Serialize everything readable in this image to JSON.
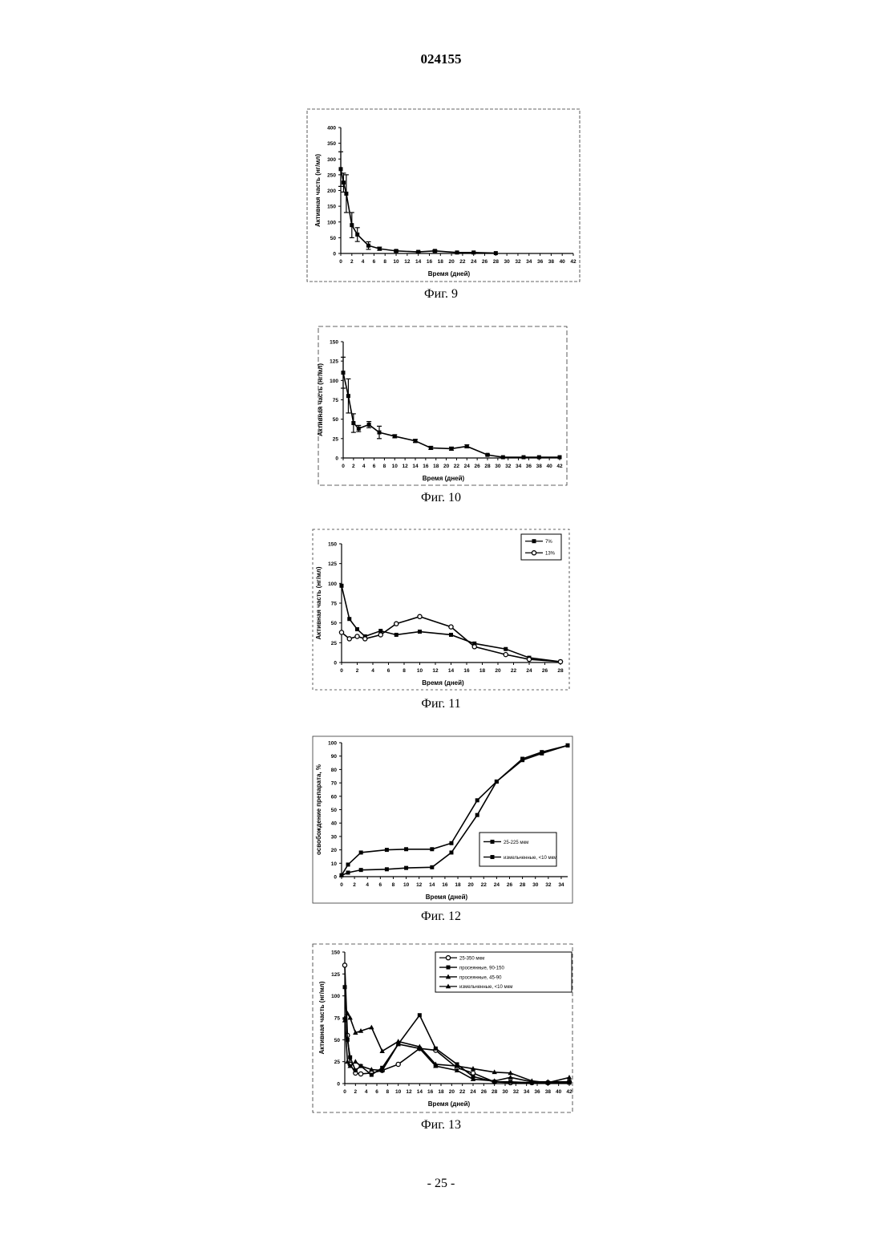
{
  "document_number": "024155",
  "page_number": "- 25 -",
  "chart_data": [
    {
      "type": "line",
      "figure_label": "Фиг. 9",
      "xlabel": "Время (дней)",
      "ylabel": "Активная часть (нг/мл)",
      "xlim": [
        0,
        42
      ],
      "ylim": [
        0,
        400
      ],
      "xticks": [
        0,
        2,
        4,
        6,
        8,
        10,
        12,
        14,
        16,
        18,
        20,
        22,
        24,
        26,
        28,
        30,
        32,
        34,
        36,
        38,
        40,
        42
      ],
      "yticks": [
        0,
        50,
        100,
        150,
        200,
        250,
        300,
        350,
        400
      ],
      "grid": false,
      "series": [
        {
          "marker": "square",
          "x": [
            0,
            0.5,
            1,
            2,
            3,
            5,
            7,
            10,
            14,
            17,
            21,
            24,
            28
          ],
          "y": [
            268,
            225,
            190,
            90,
            60,
            25,
            15,
            8,
            5,
            8,
            3,
            3,
            1
          ],
          "error": [
            55,
            30,
            60,
            40,
            22,
            12,
            5,
            3,
            2,
            3,
            1,
            1,
            0
          ]
        }
      ]
    },
    {
      "type": "line",
      "figure_label": "Фиг. 10",
      "xlabel": "Время (дней)",
      "ylabel": "Активная часть (нг/мл)",
      "xlim": [
        0,
        42
      ],
      "ylim": [
        0,
        150
      ],
      "xticks": [
        0,
        2,
        4,
        6,
        8,
        10,
        12,
        14,
        16,
        18,
        20,
        22,
        24,
        26,
        28,
        30,
        32,
        34,
        36,
        38,
        40,
        42
      ],
      "yticks": [
        0,
        25,
        50,
        75,
        100,
        125,
        150
      ],
      "grid": false,
      "series": [
        {
          "marker": "square",
          "x": [
            0,
            1,
            2,
            3,
            5,
            7,
            10,
            14,
            17,
            21,
            24,
            28,
            31,
            35,
            38,
            42
          ],
          "y": [
            110,
            80,
            45,
            38,
            43,
            33,
            28,
            22,
            13,
            12,
            15,
            4,
            1,
            1,
            1,
            1
          ],
          "error": [
            20,
            22,
            12,
            4,
            4,
            8,
            2,
            2,
            2,
            2,
            2,
            1,
            0,
            0,
            0,
            0
          ]
        }
      ]
    },
    {
      "type": "line",
      "figure_label": "Фиг. 11",
      "xlabel": "Время (дней)",
      "ylabel": "Активная часть (нг/мл)",
      "xlim": [
        0,
        28
      ],
      "ylim": [
        0,
        150
      ],
      "xticks": [
        0,
        2,
        4,
        6,
        8,
        10,
        12,
        14,
        16,
        18,
        20,
        22,
        24,
        26,
        28
      ],
      "yticks": [
        0,
        25,
        50,
        75,
        100,
        125,
        150
      ],
      "legend_position": "top-right",
      "series": [
        {
          "name": "7%",
          "marker": "square",
          "x": [
            0,
            1,
            2,
            3,
            5,
            7,
            10,
            14,
            17,
            21,
            24,
            28
          ],
          "y": [
            97,
            55,
            42,
            33,
            40,
            35,
            39,
            35,
            24,
            17,
            6,
            1
          ]
        },
        {
          "name": "13%",
          "marker": "circle",
          "x": [
            0,
            1,
            2,
            3,
            5,
            7,
            10,
            14,
            17,
            21,
            24,
            28
          ],
          "y": [
            38,
            30,
            33,
            30,
            35,
            49,
            58,
            45,
            20,
            10,
            4,
            1
          ]
        }
      ]
    },
    {
      "type": "line",
      "figure_label": "Фиг. 12",
      "xlabel": "Время (дней)",
      "ylabel": "освобождение препарата, %",
      "xlim": [
        0,
        35
      ],
      "ylim": [
        0,
        100
      ],
      "xticks": [
        0,
        2,
        4,
        6,
        8,
        10,
        12,
        14,
        16,
        18,
        20,
        22,
        24,
        26,
        28,
        30,
        32,
        34
      ],
      "yticks": [
        0,
        10,
        20,
        30,
        40,
        50,
        60,
        70,
        80,
        90,
        100
      ],
      "legend_position": "center-right",
      "series": [
        {
          "name": "25-225 мкм",
          "marker": "square",
          "x": [
            0,
            1,
            3,
            7,
            10,
            14,
            17,
            21,
            24,
            28,
            31,
            35
          ],
          "y": [
            1,
            9,
            18,
            20,
            20.5,
            20.5,
            25,
            57,
            71,
            87,
            92,
            98
          ]
        },
        {
          "name": "измельченные, <10 мкм",
          "marker": "square",
          "x": [
            0,
            1,
            3,
            7,
            10,
            14,
            17,
            21,
            24,
            28,
            31,
            35
          ],
          "y": [
            1,
            3,
            5,
            5.5,
            6.5,
            7,
            18,
            46,
            71,
            88,
            93,
            98
          ]
        }
      ]
    },
    {
      "type": "line",
      "figure_label": "Фиг. 13",
      "xlabel": "Время (дней)",
      "ylabel": "Активная часть (нг/мл)",
      "xlim": [
        0,
        42
      ],
      "ylim": [
        0,
        150
      ],
      "xticks": [
        0,
        2,
        4,
        6,
        8,
        10,
        12,
        14,
        16,
        18,
        20,
        22,
        24,
        26,
        28,
        30,
        32,
        34,
        36,
        38,
        40,
        42
      ],
      "yticks": [
        0,
        25,
        50,
        75,
        100,
        125,
        150
      ],
      "legend_position": "top-right",
      "series": [
        {
          "name": "25-350 мкм",
          "marker": "circle",
          "x": [
            0,
            0.5,
            1,
            2,
            3,
            5,
            7,
            10,
            14,
            17,
            21,
            24,
            28,
            31,
            35,
            38,
            42
          ],
          "y": [
            135,
            55,
            22,
            12,
            11,
            12,
            15,
            22,
            40,
            38,
            18,
            12,
            2,
            1,
            1,
            1,
            2
          ]
        },
        {
          "name": "просеянные, 90-150",
          "marker": "square",
          "x": [
            0,
            0.5,
            1,
            2,
            3,
            5,
            7,
            10,
            14,
            17,
            21,
            24,
            28,
            31,
            35,
            38,
            42
          ],
          "y": [
            110,
            50,
            30,
            15,
            20,
            10,
            18,
            45,
            78,
            40,
            22,
            8,
            2,
            2,
            1,
            1,
            1
          ]
        },
        {
          "name": "просеянные, 45-90",
          "marker": "triangle",
          "x": [
            0,
            0.5,
            1,
            2,
            3,
            5,
            7,
            10,
            14,
            17,
            21,
            24,
            28,
            31,
            35,
            38,
            42
          ],
          "y": [
            72,
            80,
            75,
            58,
            60,
            64,
            37,
            48,
            42,
            22,
            20,
            17,
            13,
            12,
            3,
            1,
            7
          ]
        },
        {
          "name": "измельченные, <10 мкм",
          "marker": "triangle",
          "x": [
            0,
            0.5,
            1,
            2,
            3,
            5,
            7,
            10,
            14,
            17,
            21,
            24,
            28,
            31,
            35,
            38,
            42
          ],
          "y": [
            75,
            25,
            20,
            25,
            20,
            16,
            15,
            45,
            40,
            20,
            15,
            5,
            3,
            7,
            2,
            2,
            2
          ]
        }
      ]
    }
  ]
}
